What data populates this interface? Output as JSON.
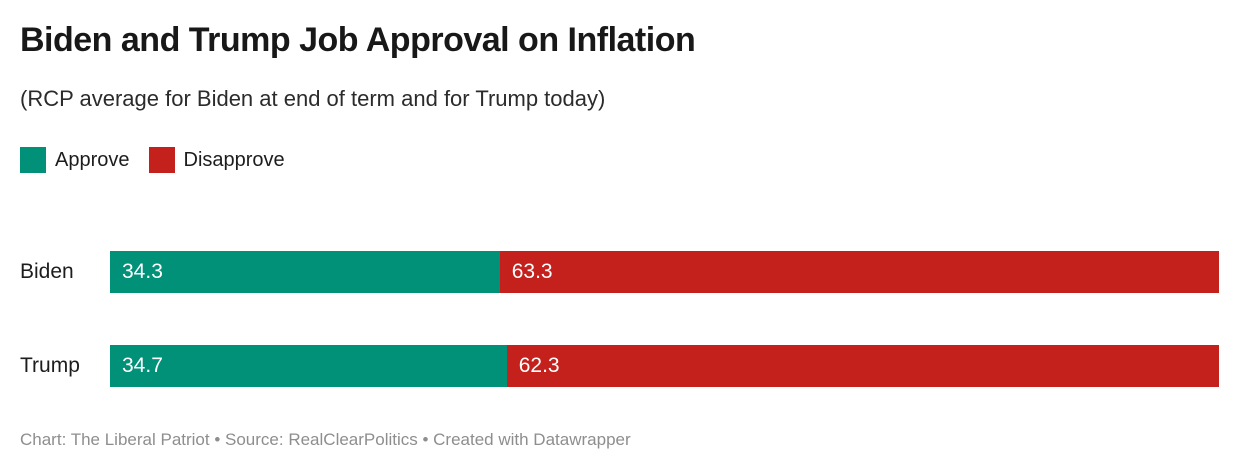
{
  "header": {
    "title": "Biden and Trump Job Approval on Inflation",
    "subtitle": "(RCP average for Biden at end of term and for Trump today)"
  },
  "legend": [
    {
      "label": "Approve",
      "color": "#009178"
    },
    {
      "label": "Disapprove",
      "color": "#c4211d"
    }
  ],
  "chart_data": {
    "type": "bar",
    "orientation": "horizontal",
    "stacked": true,
    "normalized_rows": true,
    "title": "Biden and Trump Job Approval on Inflation",
    "subtitle": "(RCP average for Biden at end of term and for Trump today)",
    "categories": [
      "Biden",
      "Trump"
    ],
    "series": [
      {
        "name": "Approve",
        "color": "#009178",
        "values": [
          34.3,
          34.7
        ]
      },
      {
        "name": "Disapprove",
        "color": "#c4211d",
        "values": [
          63.3,
          62.3
        ]
      }
    ],
    "value_labels": "inside-start",
    "value_label_color": "#ffffff",
    "legend_position": "top-left",
    "grid": false,
    "axes": "none"
  },
  "footer": {
    "text": "Chart: The Liberal Patriot • Source: RealClearPolitics • Created with Datawrapper"
  }
}
